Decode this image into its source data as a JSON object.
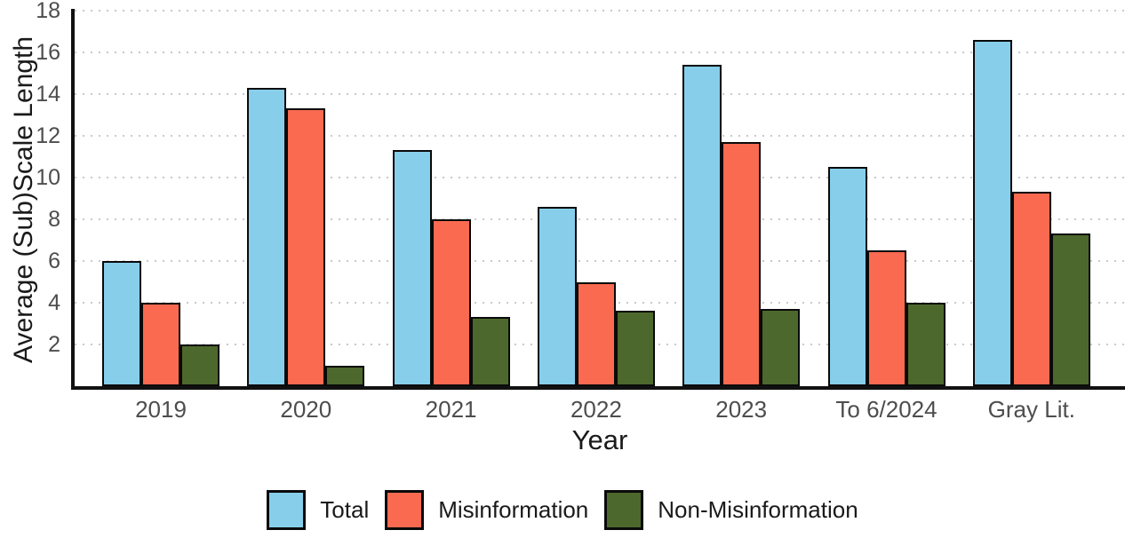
{
  "chart_data": {
    "type": "bar",
    "title": "",
    "xlabel": "Year",
    "ylabel": "Average (Sub)Scale Length",
    "categories": [
      "2019",
      "2020",
      "2021",
      "2022",
      "2023",
      "To 6/2024",
      "Gray Lit."
    ],
    "series": [
      {
        "name": "Total",
        "color": "#87CEEB",
        "values": [
          6.0,
          14.3,
          11.3,
          8.6,
          15.4,
          10.5,
          16.6
        ]
      },
      {
        "name": "Misinformation",
        "color": "#F96A50",
        "values": [
          4.0,
          13.3,
          8.0,
          5.0,
          11.7,
          6.5,
          9.3
        ]
      },
      {
        "name": "Non-Misinformation",
        "color": "#4D682C",
        "values": [
          2.0,
          1.0,
          3.3,
          3.6,
          3.7,
          4.0,
          7.3
        ]
      }
    ],
    "ylim": [
      0,
      18
    ],
    "yticks": [
      2,
      4,
      6,
      8,
      10,
      12,
      14,
      16,
      18
    ],
    "grid": "horizontal-dotted",
    "grid_color": "#c9c9c9",
    "bar_edge_color": "#0a0a0a",
    "axis_color": "#111111",
    "tick_label_color": "#4d4d4d",
    "legend_position": "bottom"
  }
}
